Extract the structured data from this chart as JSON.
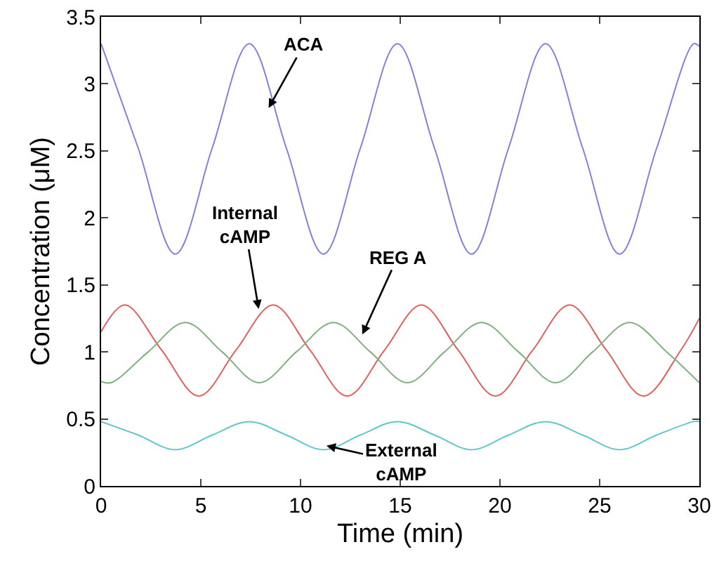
{
  "chart_data": {
    "type": "line",
    "xlabel": "Time (min)",
    "ylabel": "Concentration (μM)",
    "xlim": [
      0,
      30
    ],
    "xticks": [
      0,
      5,
      10,
      15,
      20,
      25,
      30
    ],
    "ylim": [
      0,
      3.5
    ],
    "yticks": [
      0,
      0.5,
      1,
      1.5,
      2,
      2.5,
      3,
      3.5
    ],
    "grid": false,
    "marker": "none",
    "line_style": "solid",
    "series": [
      {
        "color": "#8080e0",
        "x": [
          0,
          1.86,
          3.72,
          5.57,
          7.43,
          9.29,
          11.15,
          13.0,
          14.86,
          16.72,
          18.58,
          20.43,
          22.29,
          24.15,
          26.0,
          27.86,
          29.72,
          30
        ],
        "values": [
          3.3,
          2.52,
          1.73,
          2.52,
          3.3,
          2.52,
          1.73,
          2.52,
          3.3,
          2.52,
          1.73,
          2.52,
          3.3,
          2.52,
          1.73,
          2.52,
          3.3,
          3.28
        ]
      },
      {
        "color": "#e06060",
        "x": [
          0,
          1.2,
          3.05,
          4.9,
          6.75,
          8.63,
          10.49,
          12.34,
          14.2,
          16.06,
          17.92,
          19.77,
          21.63,
          23.49,
          25.35,
          27.2,
          29.06,
          30
        ],
        "values": [
          1.15,
          1.35,
          1.01,
          0.67,
          1.01,
          1.35,
          1.01,
          0.67,
          1.01,
          1.35,
          1.01,
          0.67,
          1.01,
          1.35,
          1.01,
          0.67,
          1.01,
          1.25
        ]
      },
      {
        "color": "#80b080",
        "x": [
          0,
          0.5,
          2.36,
          4.22,
          6.07,
          7.93,
          9.79,
          11.65,
          13.5,
          15.36,
          17.22,
          19.08,
          20.93,
          22.79,
          24.65,
          26.5,
          28.36,
          30
        ],
        "values": [
          0.78,
          0.77,
          1.0,
          1.22,
          1.0,
          0.77,
          1.0,
          1.22,
          1.0,
          0.77,
          1.0,
          1.22,
          1.0,
          0.77,
          1.0,
          1.22,
          1.0,
          0.77
        ]
      },
      {
        "color": "#60c8c8",
        "x": [
          0,
          1.86,
          3.72,
          5.57,
          7.43,
          9.29,
          11.15,
          13.0,
          14.86,
          16.72,
          18.58,
          20.43,
          22.29,
          24.15,
          26.0,
          27.86,
          29.72,
          30
        ],
        "values": [
          0.48,
          0.38,
          0.27,
          0.38,
          0.48,
          0.38,
          0.27,
          0.38,
          0.48,
          0.38,
          0.27,
          0.38,
          0.48,
          0.38,
          0.27,
          0.38,
          0.48,
          0.48
        ]
      }
    ],
    "annotations": [
      {
        "text": "ACA",
        "x": 8.4,
        "y": 2.82
      },
      {
        "text": "Internal\ncAMP",
        "x": 7.9,
        "y": 1.32
      },
      {
        "text": "REG A",
        "x": 13.1,
        "y": 1.13
      },
      {
        "text": "External\ncAMP",
        "x": 11.3,
        "y": 0.3
      }
    ]
  }
}
